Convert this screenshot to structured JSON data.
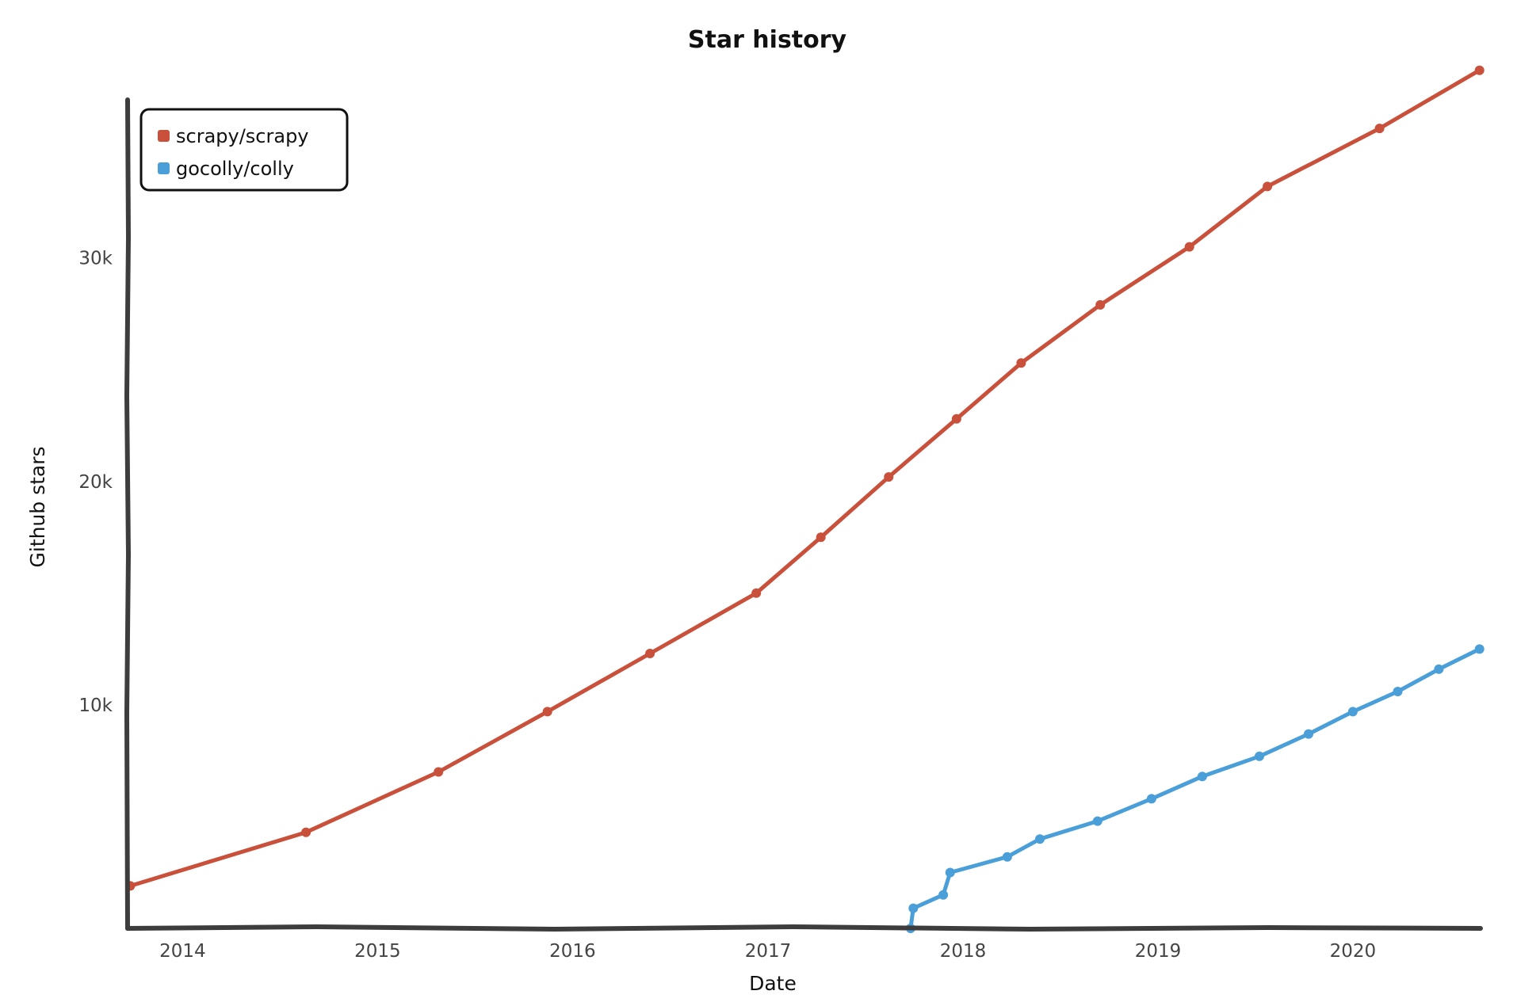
{
  "chart_data": {
    "type": "line",
    "title": "Star history",
    "xlabel": "Date",
    "ylabel": "Github stars",
    "x_tick_labels": [
      "2014",
      "2015",
      "2016",
      "2017",
      "2018",
      "2019",
      "2020"
    ],
    "y_tick_labels": [
      "10k",
      "20k",
      "30k"
    ],
    "y_ticks": [
      10000,
      20000,
      30000
    ],
    "xlim": [
      "2013-09-20",
      "2020-08-27"
    ],
    "ylim": [
      0,
      38000
    ],
    "grid": false,
    "legend_position": "top-left",
    "series": [
      {
        "name": "scrapy/scrapy",
        "color": "#c9503a",
        "points": [
          [
            "2013-09-25",
            1900
          ],
          [
            "2014-08-20",
            4300
          ],
          [
            "2015-04-25",
            7000
          ],
          [
            "2015-11-15",
            9700
          ],
          [
            "2016-05-25",
            12300
          ],
          [
            "2016-12-10",
            15000
          ],
          [
            "2017-04-10",
            17500
          ],
          [
            "2017-08-15",
            20200
          ],
          [
            "2017-12-20",
            22800
          ],
          [
            "2018-04-20",
            25300
          ],
          [
            "2018-09-15",
            27900
          ],
          [
            "2019-03-01",
            30500
          ],
          [
            "2019-07-25",
            33200
          ],
          [
            "2020-02-20",
            35800
          ],
          [
            "2020-08-25",
            38400
          ]
        ]
      },
      {
        "name": "gocolly/colly",
        "color": "#4a9fd8",
        "points": [
          [
            "2017-09-25",
            0
          ],
          [
            "2017-09-30",
            900
          ],
          [
            "2017-11-25",
            1500
          ],
          [
            "2017-12-08",
            2500
          ],
          [
            "2018-03-25",
            3200
          ],
          [
            "2018-05-25",
            4000
          ],
          [
            "2018-09-10",
            4800
          ],
          [
            "2018-12-20",
            5800
          ],
          [
            "2019-03-25",
            6800
          ],
          [
            "2019-07-10",
            7700
          ],
          [
            "2019-10-10",
            8700
          ],
          [
            "2020-01-01",
            9700
          ],
          [
            "2020-03-25",
            10600
          ],
          [
            "2020-06-10",
            11600
          ],
          [
            "2020-08-25",
            12500
          ]
        ]
      }
    ]
  }
}
